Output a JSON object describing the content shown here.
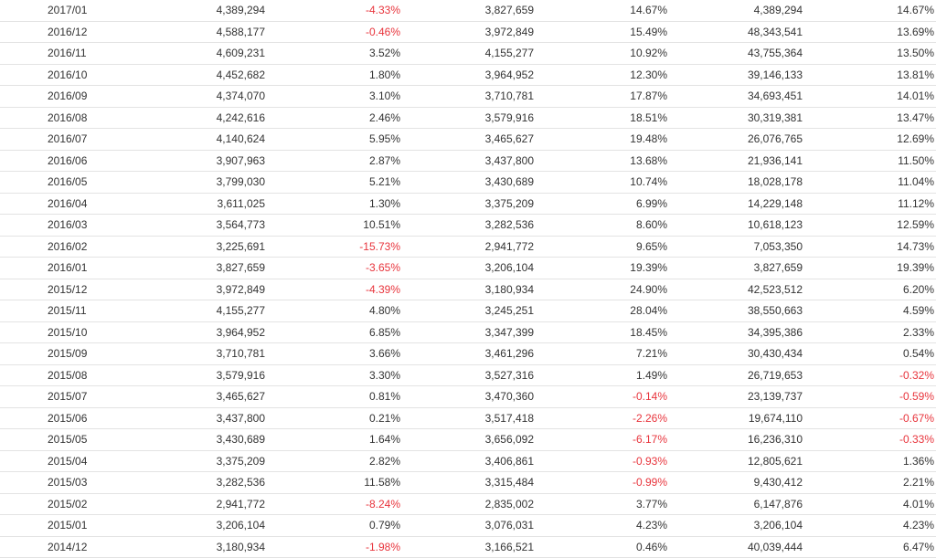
{
  "colors": {
    "negative": "#e8343c",
    "text": "#333333",
    "divider": "#e3e3e3"
  },
  "rows": [
    [
      "2017/01",
      "4,389,294",
      "-4.33%",
      "3,827,659",
      "14.67%",
      "4,389,294",
      "14.67%"
    ],
    [
      "2016/12",
      "4,588,177",
      "-0.46%",
      "3,972,849",
      "15.49%",
      "48,343,541",
      "13.69%"
    ],
    [
      "2016/11",
      "4,609,231",
      "3.52%",
      "4,155,277",
      "10.92%",
      "43,755,364",
      "13.50%"
    ],
    [
      "2016/10",
      "4,452,682",
      "1.80%",
      "3,964,952",
      "12.30%",
      "39,146,133",
      "13.81%"
    ],
    [
      "2016/09",
      "4,374,070",
      "3.10%",
      "3,710,781",
      "17.87%",
      "34,693,451",
      "14.01%"
    ],
    [
      "2016/08",
      "4,242,616",
      "2.46%",
      "3,579,916",
      "18.51%",
      "30,319,381",
      "13.47%"
    ],
    [
      "2016/07",
      "4,140,624",
      "5.95%",
      "3,465,627",
      "19.48%",
      "26,076,765",
      "12.69%"
    ],
    [
      "2016/06",
      "3,907,963",
      "2.87%",
      "3,437,800",
      "13.68%",
      "21,936,141",
      "11.50%"
    ],
    [
      "2016/05",
      "3,799,030",
      "5.21%",
      "3,430,689",
      "10.74%",
      "18,028,178",
      "11.04%"
    ],
    [
      "2016/04",
      "3,611,025",
      "1.30%",
      "3,375,209",
      "6.99%",
      "14,229,148",
      "11.12%"
    ],
    [
      "2016/03",
      "3,564,773",
      "10.51%",
      "3,282,536",
      "8.60%",
      "10,618,123",
      "12.59%"
    ],
    [
      "2016/02",
      "3,225,691",
      "-15.73%",
      "2,941,772",
      "9.65%",
      "7,053,350",
      "14.73%"
    ],
    [
      "2016/01",
      "3,827,659",
      "-3.65%",
      "3,206,104",
      "19.39%",
      "3,827,659",
      "19.39%"
    ],
    [
      "2015/12",
      "3,972,849",
      "-4.39%",
      "3,180,934",
      "24.90%",
      "42,523,512",
      "6.20%"
    ],
    [
      "2015/11",
      "4,155,277",
      "4.80%",
      "3,245,251",
      "28.04%",
      "38,550,663",
      "4.59%"
    ],
    [
      "2015/10",
      "3,964,952",
      "6.85%",
      "3,347,399",
      "18.45%",
      "34,395,386",
      "2.33%"
    ],
    [
      "2015/09",
      "3,710,781",
      "3.66%",
      "3,461,296",
      "7.21%",
      "30,430,434",
      "0.54%"
    ],
    [
      "2015/08",
      "3,579,916",
      "3.30%",
      "3,527,316",
      "1.49%",
      "26,719,653",
      "-0.32%"
    ],
    [
      "2015/07",
      "3,465,627",
      "0.81%",
      "3,470,360",
      "-0.14%",
      "23,139,737",
      "-0.59%"
    ],
    [
      "2015/06",
      "3,437,800",
      "0.21%",
      "3,517,418",
      "-2.26%",
      "19,674,110",
      "-0.67%"
    ],
    [
      "2015/05",
      "3,430,689",
      "1.64%",
      "3,656,092",
      "-6.17%",
      "16,236,310",
      "-0.33%"
    ],
    [
      "2015/04",
      "3,375,209",
      "2.82%",
      "3,406,861",
      "-0.93%",
      "12,805,621",
      "1.36%"
    ],
    [
      "2015/03",
      "3,282,536",
      "11.58%",
      "3,315,484",
      "-0.99%",
      "9,430,412",
      "2.21%"
    ],
    [
      "2015/02",
      "2,941,772",
      "-8.24%",
      "2,835,002",
      "3.77%",
      "6,147,876",
      "4.01%"
    ],
    [
      "2015/01",
      "3,206,104",
      "0.79%",
      "3,076,031",
      "4.23%",
      "3,206,104",
      "4.23%"
    ],
    [
      "2014/12",
      "3,180,934",
      "-1.98%",
      "3,166,521",
      "0.46%",
      "40,039,444",
      "6.47%"
    ]
  ]
}
